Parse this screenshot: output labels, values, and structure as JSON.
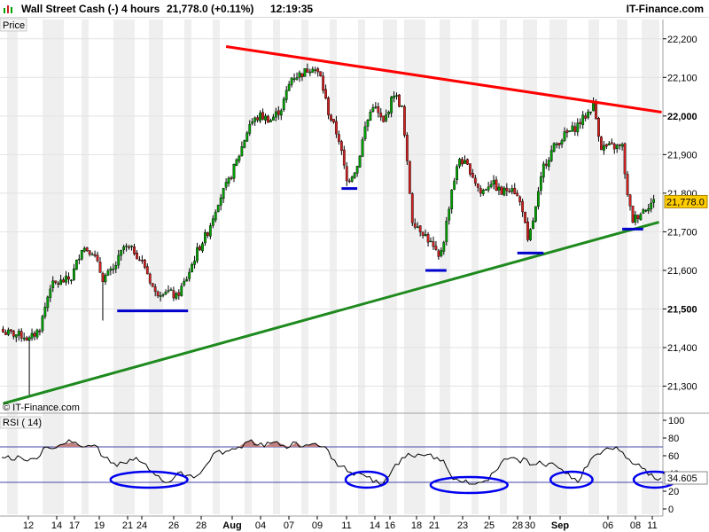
{
  "header": {
    "instrument": "Wall Street Cash (-)",
    "interval": "4 hours",
    "price_change": "21,778.0 (+0.11%)",
    "time": "12:19:35",
    "brand": "IT-Finance.com"
  },
  "price_panel": {
    "label": "Price",
    "copyright": "© IT-Finance.com",
    "current_price_label": "21,778.0"
  },
  "rsi_panel": {
    "label": "RSI ( 14)",
    "current_value_label": "34.605"
  },
  "colors": {
    "background": "#ffffff",
    "shade_band": "#efefef",
    "candle_up": "#00a000",
    "candle_down": "#d02020",
    "candle_outline": "#000000",
    "resistance": "#ff0000",
    "support": "#1e8a1e",
    "level_marker": "#0000cc",
    "rsi_line": "#000000",
    "rsi_overbought_fill": "#c08080",
    "rsi_circle": "#0000ee",
    "rsi_guide": "#4444aa",
    "price_tag_bg": "#ffcc00"
  },
  "chart_data": [
    {
      "type": "candlestick",
      "title": "",
      "ylim": [
        21230,
        22250
      ],
      "y_ticks": [
        "22,200",
        "22,100",
        "22,000",
        "21,900",
        "21,800",
        "21,700",
        "21,600",
        "21,500",
        "21,400",
        "21,300"
      ],
      "y_tick_values": [
        22200,
        22100,
        22000,
        21900,
        21800,
        21700,
        21600,
        21500,
        21400,
        21300
      ],
      "bold_y_ticks": [
        22000,
        21500
      ],
      "x_ticks": [
        "12",
        "14",
        "17",
        "19",
        "21",
        "24",
        "26",
        "28",
        "Aug",
        "04",
        "07",
        "09",
        "11",
        "14",
        "16",
        "18",
        "21",
        "23",
        "25",
        "28",
        "30",
        "Sep",
        "06",
        "08",
        "11"
      ],
      "bold_x_ticks": [
        "Aug",
        "Sep"
      ],
      "path_anchors": [
        [
          0,
          21440
        ],
        [
          8,
          21430
        ],
        [
          10,
          21420
        ],
        [
          14,
          21450
        ],
        [
          18,
          21560
        ],
        [
          22,
          21570
        ],
        [
          26,
          21580
        ],
        [
          30,
          21660
        ],
        [
          34,
          21650
        ],
        [
          38,
          21580
        ],
        [
          42,
          21600
        ],
        [
          46,
          21660
        ],
        [
          50,
          21650
        ],
        [
          54,
          21610
        ],
        [
          58,
          21540
        ],
        [
          62,
          21550
        ],
        [
          66,
          21530
        ],
        [
          70,
          21580
        ],
        [
          74,
          21650
        ],
        [
          78,
          21700
        ],
        [
          82,
          21780
        ],
        [
          86,
          21830
        ],
        [
          90,
          21900
        ],
        [
          94,
          21980
        ],
        [
          98,
          22000
        ],
        [
          102,
          21990
        ],
        [
          106,
          22020
        ],
        [
          110,
          22100
        ],
        [
          114,
          22110
        ],
        [
          118,
          22130
        ],
        [
          121,
          22100
        ],
        [
          124,
          22010
        ],
        [
          128,
          21940
        ],
        [
          131,
          21830
        ],
        [
          135,
          21870
        ],
        [
          138,
          21970
        ],
        [
          141,
          22030
        ],
        [
          145,
          21980
        ],
        [
          149,
          22060
        ],
        [
          152,
          22020
        ],
        [
          156,
          21730
        ],
        [
          160,
          21700
        ],
        [
          163,
          21670
        ],
        [
          166,
          21630
        ],
        [
          168,
          21680
        ],
        [
          171,
          21810
        ],
        [
          174,
          21890
        ],
        [
          178,
          21860
        ],
        [
          182,
          21800
        ],
        [
          186,
          21830
        ],
        [
          190,
          21800
        ],
        [
          194,
          21820
        ],
        [
          198,
          21760
        ],
        [
          200,
          21670
        ],
        [
          203,
          21760
        ],
        [
          206,
          21870
        ],
        [
          210,
          21920
        ],
        [
          214,
          21950
        ],
        [
          218,
          21970
        ],
        [
          222,
          22000
        ],
        [
          225,
          22030
        ],
        [
          228,
          21920
        ],
        [
          232,
          21920
        ],
        [
          236,
          21920
        ],
        [
          238,
          21790
        ],
        [
          240,
          21730
        ],
        [
          243,
          21750
        ],
        [
          246,
          21770
        ],
        [
          248,
          21778
        ]
      ],
      "gap_candles": [
        [
          228,
          229
        ]
      ],
      "current_price": 21778.0,
      "resistance_line": {
        "from": [
          85,
          22180
        ],
        "to": [
          251,
          22010
        ],
        "x_units": "pixels-free: candle index scale"
      },
      "support_line": {
        "from": [
          0,
          21255
        ],
        "to": [
          250,
          21725
        ]
      },
      "support_levels": [
        {
          "center": 57,
          "width": 27,
          "price": 21495
        },
        {
          "center": 132,
          "width": 6,
          "price": 21812
        },
        {
          "center": 165,
          "width": 8,
          "price": 21600
        },
        {
          "center": 201,
          "width": 10,
          "price": 21645
        },
        {
          "center": 240,
          "width": 8,
          "price": 21707
        }
      ]
    },
    {
      "type": "line",
      "name_label": "RSI ( 14)",
      "ylim": [
        0,
        100
      ],
      "y_ticks": [
        "100",
        "80",
        "60",
        "40",
        "20",
        "0"
      ],
      "y_tick_values": [
        100,
        80,
        60,
        40,
        20,
        0
      ],
      "guide_levels": [
        70,
        30
      ],
      "current_value": 34.605,
      "values": [
        58,
        60,
        55,
        58,
        54,
        57,
        60,
        70,
        68,
        72,
        74,
        75,
        72,
        70,
        71,
        70,
        58,
        52,
        48,
        52,
        56,
        58,
        52,
        44,
        38,
        32,
        30,
        36,
        42,
        38,
        35,
        40,
        50,
        62,
        66,
        65,
        68,
        70,
        75,
        78,
        72,
        70,
        74,
        76,
        72,
        70,
        75,
        70,
        72,
        74,
        70,
        66,
        55,
        48,
        42,
        38,
        40,
        36,
        30,
        28,
        34,
        44,
        50,
        58,
        60,
        62,
        60,
        62,
        58,
        55,
        40,
        34,
        30,
        28,
        28,
        30,
        32,
        42,
        52,
        56,
        58,
        52,
        56,
        50,
        54,
        48,
        52,
        46,
        40,
        34,
        30,
        46,
        56,
        62,
        66,
        68,
        70,
        64,
        56,
        50,
        46,
        38,
        34,
        35
      ],
      "circled_regions": [
        {
          "center_index": 23,
          "span": 6
        },
        {
          "center_index": 57,
          "span": 3
        },
        {
          "center_index": 73,
          "span": 6
        },
        {
          "center_index": 89,
          "span": 3
        },
        {
          "center_index": 102,
          "span": 3
        }
      ]
    }
  ]
}
